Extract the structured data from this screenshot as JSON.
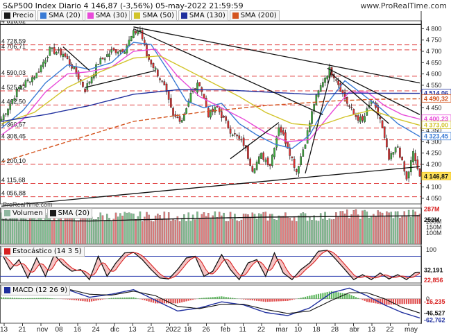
{
  "header": {
    "title": "S&P500 Index Diario 4 146,87 (-3,56%) 05-may-2022 21:59:59",
    "watermark": "www.ProRealTime.com",
    "footer_credit": "ProRealTime.com"
  },
  "legends": {
    "price": [
      {
        "label": "Precio",
        "color": "#1a1a1a"
      },
      {
        "label": "SMA (20)",
        "color": "#3a7bd5"
      },
      {
        "label": "SMA (30)",
        "color": "#e84ad9"
      },
      {
        "label": "SMA (50)",
        "color": "#d2c42a"
      },
      {
        "label": "SMA (130)",
        "color": "#1f2f9e"
      },
      {
        "label": "SMA (200)",
        "color": "#d4541e"
      }
    ],
    "volume": [
      {
        "label": "Volumen",
        "color": "#8fb7a0"
      },
      {
        "label": "SMA (20)",
        "color": "#1a1a1a"
      }
    ],
    "stoch": [
      {
        "label": "Estocástico (14 3 5)",
        "color": "#d82020"
      }
    ],
    "macd": [
      {
        "label": "MACD (12 26 9)",
        "color": "#1f2f9e"
      }
    ]
  },
  "chart_data": [
    {
      "type": "candlestick",
      "panel": "price",
      "ylim": [
        4025,
        4835
      ],
      "y_ticks": [
        4050,
        4100,
        4150,
        4200,
        4250,
        4300,
        4350,
        4400,
        4450,
        4500,
        4550,
        4600,
        4650,
        4700,
        4750,
        4800
      ],
      "y_tick_labels": [
        "4 050",
        "4 100",
        "4 150",
        "4 200",
        "4 250",
        "4 300",
        "4 350",
        "4 400",
        "4 450",
        "4 500",
        "4 550",
        "4 600",
        "4 650",
        "4 700",
        "4 750",
        "4 800"
      ],
      "x_ticks": [
        "13",
        "21",
        "nov",
        "08",
        "16",
        "24",
        "dic",
        "13",
        "21",
        "2022",
        "18",
        "26",
        "feb",
        "11",
        "22",
        "mar",
        "10",
        "18",
        "28",
        "abr",
        "13",
        "22",
        "may"
      ],
      "left_levels": [
        {
          "label": "4 818,62",
          "value": 4818.62
        },
        {
          "label": "4 728,59",
          "value": 4728.59
        },
        {
          "label": "4 706,71",
          "value": 4706.71
        },
        {
          "label": "4 590,03",
          "value": 4590.03
        },
        {
          "label": "4 525,12",
          "value": 4525.12
        },
        {
          "label": "4 462,50",
          "value": 4462.5
        },
        {
          "label": "4 360,57",
          "value": 4360.57
        },
        {
          "label": "4 308,45",
          "value": 4308.45
        },
        {
          "label": "4 200,10",
          "value": 4200.1
        },
        {
          "label": "4 115,68",
          "value": 4115.68
        },
        {
          "label": "4 056,88",
          "value": 4056.88
        }
      ],
      "right_values": [
        {
          "label": "4 514,06",
          "value": 4514.06,
          "color": "#1f2f9e"
        },
        {
          "label": "4 490,32",
          "value": 4490.32,
          "color": "#d4541e"
        },
        {
          "label": "4 400,23",
          "value": 4400.23,
          "color": "#e84ad9"
        },
        {
          "label": "4 373,00",
          "value": 4373.0,
          "color": "#d2c42a"
        },
        {
          "label": "4 323,45",
          "value": 4323.45,
          "color": "#3a7bd5"
        },
        {
          "label": "4 146,87",
          "value": 4146.87,
          "color": "#f0c020"
        }
      ],
      "close_anchors": [
        [
          0,
          4400
        ],
        [
          8,
          4540
        ],
        [
          16,
          4600
        ],
        [
          22,
          4705
        ],
        [
          28,
          4690
        ],
        [
          33,
          4620
        ],
        [
          38,
          4530
        ],
        [
          44,
          4650
        ],
        [
          50,
          4700
        ],
        [
          56,
          4710
        ],
        [
          60,
          4780
        ],
        [
          63,
          4795
        ],
        [
          66,
          4680
        ],
        [
          70,
          4620
        ],
        [
          74,
          4540
        ],
        [
          78,
          4410
        ],
        [
          82,
          4400
        ],
        [
          86,
          4510
        ],
        [
          90,
          4560
        ],
        [
          94,
          4420
        ],
        [
          98,
          4450
        ],
        [
          104,
          4350
        ],
        [
          110,
          4290
        ],
        [
          114,
          4180
        ],
        [
          118,
          4240
        ],
        [
          122,
          4200
        ],
        [
          126,
          4370
        ],
        [
          130,
          4280
        ],
        [
          134,
          4170
        ],
        [
          138,
          4300
        ],
        [
          142,
          4470
        ],
        [
          146,
          4570
        ],
        [
          149,
          4620
        ],
        [
          152,
          4580
        ],
        [
          156,
          4490
        ],
        [
          160,
          4420
        ],
        [
          164,
          4390
        ],
        [
          168,
          4480
        ],
        [
          172,
          4400
        ],
        [
          176,
          4220
        ],
        [
          180,
          4280
        ],
        [
          184,
          4130
        ],
        [
          187,
          4250
        ],
        [
          190,
          4146.87
        ]
      ],
      "sma": [
        {
          "name": "SMA (20)",
          "color": "#3a7bd5",
          "anchors": [
            [
              0,
              4360
            ],
            [
              10,
              4440
            ],
            [
              20,
              4560
            ],
            [
              30,
              4640
            ],
            [
              40,
              4620
            ],
            [
              50,
              4650
            ],
            [
              60,
              4740
            ],
            [
              68,
              4730
            ],
            [
              76,
              4610
            ],
            [
              84,
              4480
            ],
            [
              92,
              4450
            ],
            [
              100,
              4470
            ],
            [
              108,
              4380
            ],
            [
              116,
              4330
            ],
            [
              124,
              4290
            ],
            [
              132,
              4270
            ],
            [
              140,
              4330
            ],
            [
              148,
              4470
            ],
            [
              156,
              4570
            ],
            [
              164,
              4510
            ],
            [
              172,
              4450
            ],
            [
              180,
              4380
            ],
            [
              190,
              4323
            ]
          ]
        },
        {
          "name": "SMA (30)",
          "color": "#e84ad9",
          "anchors": [
            [
              0,
              4330
            ],
            [
              10,
              4400
            ],
            [
              20,
              4520
            ],
            [
              30,
              4600
            ],
            [
              40,
              4610
            ],
            [
              50,
              4630
            ],
            [
              60,
              4700
            ],
            [
              70,
              4710
            ],
            [
              80,
              4590
            ],
            [
              90,
              4500
            ],
            [
              100,
              4450
            ],
            [
              110,
              4400
            ],
            [
              120,
              4340
            ],
            [
              130,
              4300
            ],
            [
              140,
              4310
            ],
            [
              150,
              4430
            ],
            [
              158,
              4520
            ],
            [
              166,
              4520
            ],
            [
              174,
              4460
            ],
            [
              182,
              4420
            ],
            [
              190,
              4400
            ]
          ]
        },
        {
          "name": "SMA (50)",
          "color": "#d2c42a",
          "anchors": [
            [
              0,
              4380
            ],
            [
              15,
              4430
            ],
            [
              30,
              4540
            ],
            [
              45,
              4610
            ],
            [
              60,
              4670
            ],
            [
              72,
              4680
            ],
            [
              84,
              4620
            ],
            [
              96,
              4560
            ],
            [
              108,
              4500
            ],
            [
              120,
              4430
            ],
            [
              132,
              4380
            ],
            [
              144,
              4370
            ],
            [
              156,
              4410
            ],
            [
              168,
              4440
            ],
            [
              180,
              4400
            ],
            [
              190,
              4373
            ]
          ]
        },
        {
          "name": "SMA (130)",
          "color": "#1f2f9e",
          "anchors": [
            [
              0,
              4390
            ],
            [
              20,
              4420
            ],
            [
              40,
              4460
            ],
            [
              60,
              4510
            ],
            [
              80,
              4530
            ],
            [
              100,
              4530
            ],
            [
              120,
              4520
            ],
            [
              140,
              4510
            ],
            [
              160,
              4515
            ],
            [
              190,
              4514
            ]
          ]
        },
        {
          "name": "SMA (200)",
          "color": "#d4541e",
          "anchors": [
            [
              0,
              4210
            ],
            [
              30,
              4300
            ],
            [
              60,
              4390
            ],
            [
              90,
              4430
            ],
            [
              120,
              4460
            ],
            [
              150,
              4480
            ],
            [
              170,
              4488
            ],
            [
              190,
              4490
            ]
          ]
        }
      ]
    },
    {
      "type": "bar",
      "panel": "volume",
      "ylim": [
        0,
        320
      ],
      "y_ticks": [
        100,
        150,
        200
      ],
      "y_tick_labels": [
        "100M",
        "150M",
        "200M"
      ],
      "right_values": [
        {
          "label": "287M",
          "value": 287,
          "color": "#d82020"
        },
        {
          "label": "252M",
          "value": 252,
          "color": "#1a1a1a"
        }
      ],
      "sma_anchors": [
        [
          0,
          215
        ],
        [
          40,
          205
        ],
        [
          80,
          225
        ],
        [
          120,
          240
        ],
        [
          150,
          245
        ],
        [
          170,
          248
        ],
        [
          190,
          252
        ]
      ]
    },
    {
      "type": "line",
      "panel": "stochastic",
      "ylim": [
        0,
        110
      ],
      "y_ticks": [
        100
      ],
      "y_tick_labels": [
        "100"
      ],
      "bands": [
        80,
        20
      ],
      "right_values": [
        {
          "label": "32,191",
          "value": 32.191,
          "color": "#1a1a1a"
        },
        {
          "label": "22,856",
          "value": 22.856,
          "color": "#d82020"
        }
      ],
      "k_anchors": [
        [
          0,
          90
        ],
        [
          4,
          40
        ],
        [
          8,
          70
        ],
        [
          12,
          15
        ],
        [
          16,
          75
        ],
        [
          20,
          20
        ],
        [
          24,
          85
        ],
        [
          28,
          55
        ],
        [
          32,
          35
        ],
        [
          36,
          40
        ],
        [
          40,
          10
        ],
        [
          44,
          80
        ],
        [
          48,
          20
        ],
        [
          52,
          60
        ],
        [
          56,
          90
        ],
        [
          60,
          92
        ],
        [
          64,
          70
        ],
        [
          68,
          40
        ],
        [
          72,
          15
        ],
        [
          76,
          12
        ],
        [
          80,
          40
        ],
        [
          84,
          75
        ],
        [
          88,
          80
        ],
        [
          92,
          20
        ],
        [
          96,
          35
        ],
        [
          100,
          85
        ],
        [
          104,
          40
        ],
        [
          108,
          10
        ],
        [
          112,
          60
        ],
        [
          116,
          70
        ],
        [
          120,
          20
        ],
        [
          124,
          90
        ],
        [
          128,
          30
        ],
        [
          132,
          10
        ],
        [
          136,
          40
        ],
        [
          140,
          60
        ],
        [
          144,
          95
        ],
        [
          148,
          98
        ],
        [
          152,
          70
        ],
        [
          156,
          40
        ],
        [
          160,
          10
        ],
        [
          164,
          25
        ],
        [
          168,
          10
        ],
        [
          172,
          30
        ],
        [
          176,
          12
        ],
        [
          180,
          25
        ],
        [
          184,
          10
        ],
        [
          188,
          32
        ],
        [
          190,
          32.191
        ]
      ]
    },
    {
      "type": "line",
      "panel": "macd",
      "ylim": [
        -80,
        45
      ],
      "y_ticks": [
        0
      ],
      "y_tick_labels": [
        "0"
      ],
      "right_values": [
        {
          "label": "-16,235",
          "value": -16.235,
          "color": "#d82020"
        },
        {
          "label": "-46,527",
          "value": -46.527,
          "color": "#1a1a1a"
        },
        {
          "label": "-62,762",
          "value": -62.762,
          "color": "#1f2f9e"
        }
      ],
      "macd_anchors": [
        [
          0,
          25
        ],
        [
          10,
          30
        ],
        [
          20,
          35
        ],
        [
          30,
          30
        ],
        [
          40,
          5
        ],
        [
          50,
          15
        ],
        [
          60,
          30
        ],
        [
          70,
          -5
        ],
        [
          80,
          -40
        ],
        [
          90,
          -30
        ],
        [
          100,
          -10
        ],
        [
          110,
          -20
        ],
        [
          120,
          -45
        ],
        [
          130,
          -55
        ],
        [
          140,
          -30
        ],
        [
          150,
          20
        ],
        [
          158,
          35
        ],
        [
          166,
          10
        ],
        [
          174,
          -20
        ],
        [
          182,
          -45
        ],
        [
          190,
          -62.762
        ]
      ],
      "signal_anchors": [
        [
          0,
          20
        ],
        [
          10,
          28
        ],
        [
          20,
          32
        ],
        [
          30,
          32
        ],
        [
          40,
          15
        ],
        [
          50,
          12
        ],
        [
          60,
          25
        ],
        [
          70,
          10
        ],
        [
          80,
          -25
        ],
        [
          90,
          -32
        ],
        [
          100,
          -18
        ],
        [
          110,
          -18
        ],
        [
          120,
          -35
        ],
        [
          130,
          -48
        ],
        [
          140,
          -40
        ],
        [
          150,
          -5
        ],
        [
          158,
          20
        ],
        [
          166,
          20
        ],
        [
          174,
          0
        ],
        [
          182,
          -28
        ],
        [
          190,
          -46.527
        ]
      ]
    }
  ]
}
